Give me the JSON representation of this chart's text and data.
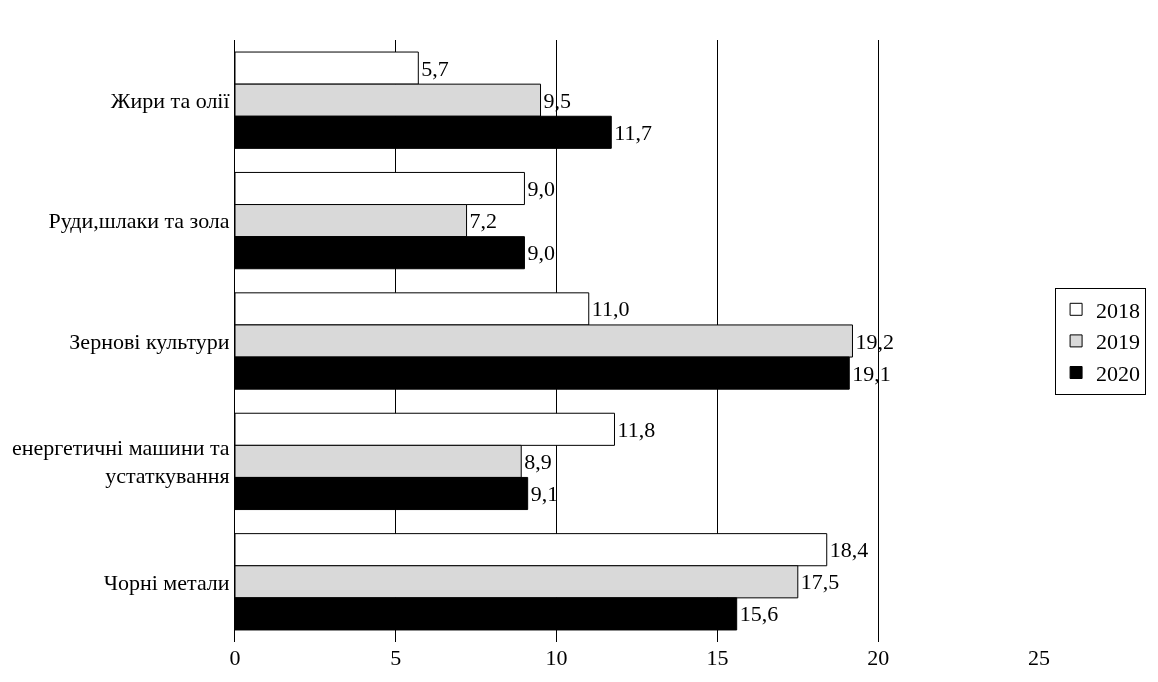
{
  "chart_data": {
    "type": "bar",
    "orientation": "horizontal",
    "categories": [
      "Жири та олії",
      "Руди,шлаки та зола",
      "Зернові культури",
      "енергетичні машини та устаткування",
      "Чорні метали"
    ],
    "series": [
      {
        "name": "2018",
        "color": "#ffffff",
        "values": [
          5.7,
          9.0,
          11.0,
          11.8,
          18.4
        ],
        "value_labels": [
          "5,7",
          "9,0",
          "11,0",
          "11,8",
          "18,4"
        ]
      },
      {
        "name": "2019",
        "color": "#d9d9d9",
        "values": [
          9.5,
          7.2,
          19.2,
          8.9,
          17.5
        ],
        "value_labels": [
          "9,5",
          "7,2",
          "19,2",
          "8,9",
          "17,5"
        ]
      },
      {
        "name": "2020",
        "color": "#000000",
        "values": [
          11.7,
          9.0,
          19.1,
          9.1,
          15.6
        ],
        "value_labels": [
          "11,7",
          "9,0",
          "19,1",
          "9,1",
          "15,6"
        ]
      }
    ],
    "xlim": [
      0,
      25
    ],
    "xticks": [
      0,
      5,
      10,
      15,
      20,
      25
    ],
    "grid": "x",
    "legend": "right"
  }
}
